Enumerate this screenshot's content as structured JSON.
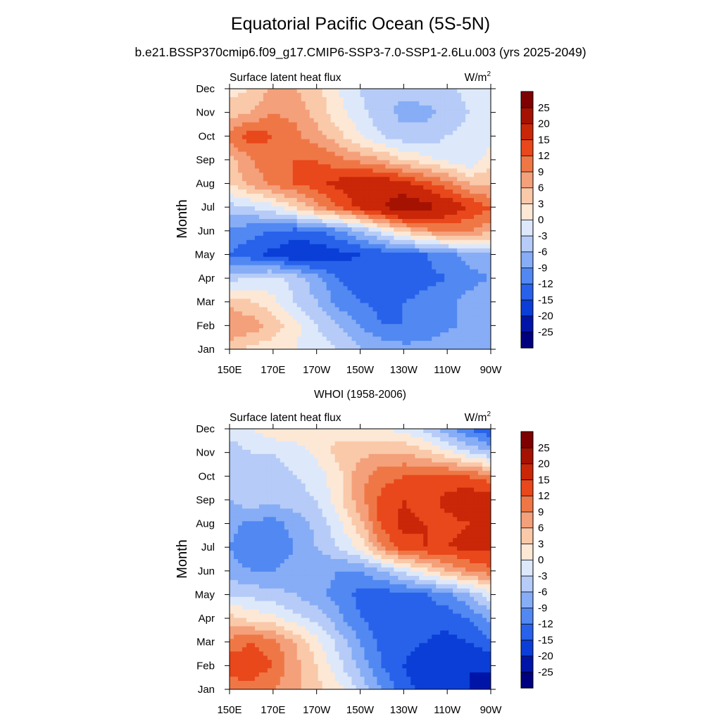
{
  "title": "Equatorial Pacific Ocean (5S-5N)",
  "subtitle": "b.e21.BSSP370cmip6.f09_g17.CMIP6-SSP3-7.0-SSP1-2.6Lu.003 (yrs 2025-2049)",
  "colors": [
    "#00007f",
    "#0015a8",
    "#0a3ed6",
    "#2862ea",
    "#5288f2",
    "#86adf5",
    "#b6cbf7",
    "#dde9fa",
    "#fde8d6",
    "#f9c9a9",
    "#f4a07b",
    "#ef7746",
    "#e8481b",
    "#c92708",
    "#a51202",
    "#7f0000"
  ],
  "chart_data": [
    {
      "type": "heatmap",
      "panel_title": "",
      "left_label": "Surface latent heat flux",
      "units": "W/m",
      "units_sup": "2",
      "ylabel": "Month",
      "x_ticks": [
        "150E",
        "170E",
        "170W",
        "150W",
        "130W",
        "110W",
        "90W"
      ],
      "y_ticks": [
        "Jan",
        "Feb",
        "Mar",
        "Apr",
        "May",
        "Jun",
        "Jul",
        "Aug",
        "Sep",
        "Oct",
        "Nov",
        "Dec"
      ],
      "levels": [
        "-25",
        "-20",
        "-15",
        "-12",
        "-9",
        "-6",
        "-3",
        "0",
        "3",
        "6",
        "9",
        "12",
        "15",
        "20",
        "25"
      ],
      "grid_x": [
        150,
        160,
        170,
        180,
        190,
        200,
        210,
        220,
        230,
        240,
        250,
        260,
        270
      ],
      "values": [
        [
          4,
          2,
          1,
          0,
          -1,
          -3,
          -6,
          -7,
          -8,
          -8,
          -6,
          -7,
          -9
        ],
        [
          9,
          8,
          5,
          1,
          -3,
          -6,
          -9,
          -12,
          -12,
          -11,
          -10,
          -8,
          -9
        ],
        [
          5,
          3,
          1,
          -3,
          -6,
          -10,
          -12,
          -13,
          -12,
          -11,
          -10,
          -8,
          -7
        ],
        [
          -4,
          -3,
          -2,
          -4,
          -8,
          -12,
          -14,
          -14,
          -14,
          -13,
          -12,
          -10,
          -9
        ],
        [
          -12,
          -14,
          -16,
          -18,
          -18,
          -16,
          -15,
          -14,
          -13,
          -12,
          -10,
          -8,
          -6
        ],
        [
          -10,
          -11,
          -12,
          -13,
          -12,
          -10,
          -6,
          -1,
          4,
          8,
          10,
          9,
          7
        ],
        [
          -4,
          -3,
          -1,
          3,
          8,
          12,
          16,
          20,
          24,
          22,
          18,
          15,
          12
        ],
        [
          3,
          7,
          10,
          12,
          14,
          16,
          18,
          18,
          16,
          13,
          10,
          6,
          5
        ],
        [
          5,
          9,
          11,
          12,
          12,
          10,
          8,
          6,
          3,
          1,
          -1,
          -3,
          2
        ],
        [
          10,
          14,
          12,
          10,
          7,
          4,
          0,
          -3,
          -5,
          -5,
          -3,
          -2,
          -2
        ],
        [
          4,
          6,
          9,
          8,
          5,
          1,
          -2,
          -5,
          -7,
          -7,
          -5,
          -3,
          -2
        ],
        [
          2,
          3,
          7,
          6,
          4,
          0,
          -3,
          -6,
          -5,
          -4,
          -4,
          -2,
          -1
        ]
      ]
    },
    {
      "type": "heatmap",
      "panel_title": "WHOI (1958-2006)",
      "left_label": "Surface latent heat flux",
      "units": "W/m",
      "units_sup": "2",
      "ylabel": "Month",
      "x_ticks": [
        "150E",
        "170E",
        "170W",
        "150W",
        "130W",
        "110W",
        "90W"
      ],
      "y_ticks": [
        "Jan",
        "Feb",
        "Mar",
        "Apr",
        "May",
        "Jun",
        "Jul",
        "Aug",
        "Sep",
        "Oct",
        "Nov",
        "Dec"
      ],
      "levels": [
        "-25",
        "-20",
        "-15",
        "-12",
        "-9",
        "-6",
        "-3",
        "0",
        "3",
        "6",
        "9",
        "12",
        "15",
        "20",
        "25"
      ],
      "grid_x": [
        150,
        160,
        170,
        180,
        190,
        200,
        210,
        220,
        230,
        240,
        250,
        260,
        270
      ],
      "values": [
        [
          10,
          11,
          9,
          7,
          4,
          1,
          -4,
          -9,
          -14,
          -16,
          -18,
          -20,
          -24
        ],
        [
          14,
          14,
          12,
          7,
          3,
          -2,
          -7,
          -12,
          -15,
          -18,
          -20,
          -20,
          -18
        ],
        [
          10,
          12,
          10,
          6,
          1,
          -4,
          -9,
          -13,
          -14,
          -15,
          -16,
          -15,
          -12
        ],
        [
          4,
          2,
          1,
          -2,
          -4,
          -8,
          -12,
          -14,
          -14,
          -14,
          -14,
          -12,
          -8
        ],
        [
          -3,
          -4,
          -5,
          -6,
          -8,
          -10,
          -13,
          -14,
          -13,
          -12,
          -10,
          -6,
          -1
        ],
        [
          -8,
          -9,
          -9,
          -8,
          -8,
          -9,
          -9,
          -6,
          -2,
          2,
          6,
          9,
          11
        ],
        [
          -9,
          -11,
          -11,
          -9,
          -6,
          -3,
          1,
          9,
          14,
          15,
          15,
          16,
          16
        ],
        [
          -8,
          -10,
          -10,
          -8,
          -5,
          -1,
          5,
          13,
          16,
          15,
          14,
          15,
          16
        ],
        [
          -6,
          -4,
          -5,
          -4,
          -3,
          2,
          8,
          13,
          15,
          13,
          16,
          18,
          17
        ],
        [
          -5,
          -3,
          -4,
          -3,
          -2,
          2,
          8,
          11,
          12,
          12,
          13,
          12,
          10
        ],
        [
          -5,
          -3,
          -3,
          -2,
          1,
          4,
          5,
          6,
          6,
          4,
          1,
          -3,
          -6
        ],
        [
          -1,
          0,
          2,
          3,
          3,
          2,
          1,
          0,
          -1,
          -4,
          -8,
          -12,
          -15
        ]
      ]
    }
  ]
}
